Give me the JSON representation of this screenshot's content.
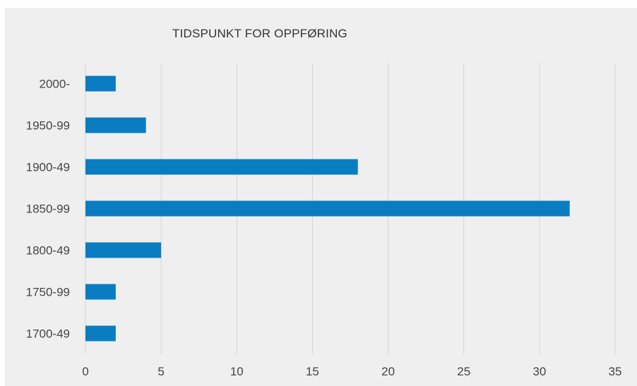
{
  "chart_data": {
    "type": "bar",
    "orientation": "horizontal",
    "title": "TIDSPUNKT FOR OPPFØRING",
    "xlabel": "",
    "ylabel": "",
    "categories": [
      "2000-",
      "1950-99",
      "1900-49",
      "1850-99",
      "1800-49",
      "1750-99",
      "1700-49"
    ],
    "values": [
      2,
      4,
      18,
      32,
      5,
      2,
      2
    ],
    "xlim": [
      0,
      35
    ],
    "xticks": [
      0,
      5,
      10,
      15,
      20,
      25,
      30,
      35
    ],
    "grid": "vertical",
    "legend": "none",
    "bar_color": "#0a7dc2",
    "grid_color": "#d4d4d4",
    "background": "#efefef"
  }
}
